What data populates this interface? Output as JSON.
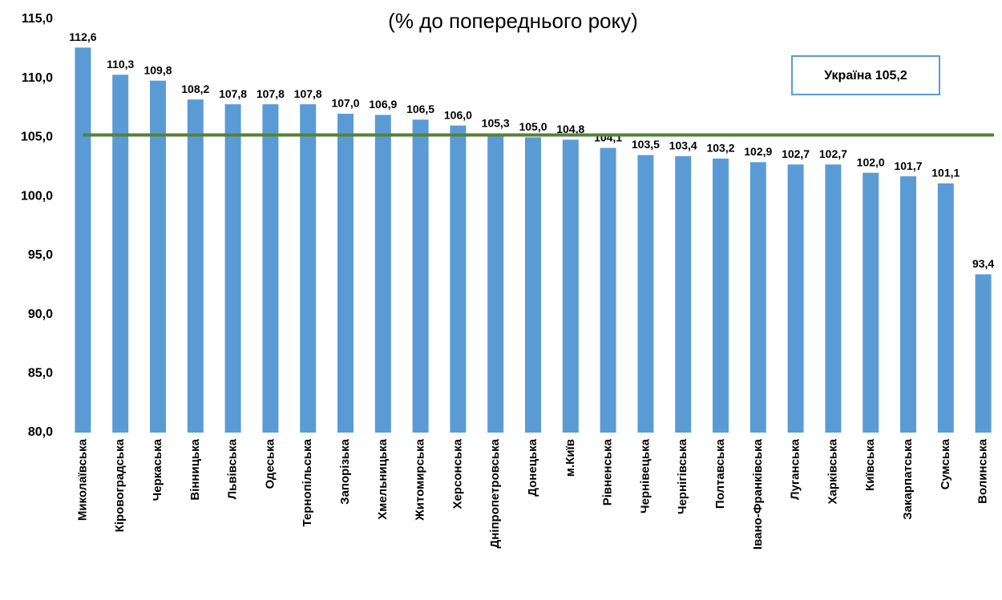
{
  "chart_data": {
    "type": "bar",
    "subtitle": "(% до попереднього року)",
    "categories": [
      "Миколаївська",
      "Кіровоградська",
      "Черкаська",
      "Вінницька",
      "Львівська",
      "Одеська",
      "Тернопільська",
      "Запорізька",
      "Хмельницька",
      "Житомирська",
      "Херсонська",
      "Дніпропетровська",
      "Донецька",
      "м.Київ",
      "Рівненська",
      "Чернівецька",
      "Чернігівська",
      "Полтавська",
      "Івано-Франківська",
      "Луганська",
      "Харківська",
      "Київська",
      "Закарпатська",
      "Сумська",
      "Волинська"
    ],
    "values": [
      112.6,
      110.3,
      109.8,
      108.2,
      107.8,
      107.8,
      107.8,
      107.0,
      106.9,
      106.5,
      106.0,
      105.3,
      105.0,
      104.8,
      104.1,
      103.5,
      103.4,
      103.2,
      102.9,
      102.7,
      102.7,
      102.0,
      101.7,
      101.1,
      93.4
    ],
    "value_labels": [
      "112,6",
      "110,3",
      "109,8",
      "108,2",
      "107,8",
      "107,8",
      "107,8",
      "107,0",
      "106,9",
      "106,5",
      "106,0",
      "105,3",
      "105,0",
      "104,8",
      "104,1",
      "103,5",
      "103,4",
      "103,2",
      "102,9",
      "102,7",
      "102,7",
      "102,0",
      "101,7",
      "101,1",
      "93,4"
    ],
    "color": "#5b9bd5",
    "ylim": [
      80,
      115
    ],
    "yticks": [
      {
        "value": 80,
        "label": "80,0"
      },
      {
        "value": 85,
        "label": "85,0"
      },
      {
        "value": 90,
        "label": "90,0"
      },
      {
        "value": 95,
        "label": "95,0"
      },
      {
        "value": 100,
        "label": "100,0"
      },
      {
        "value": 105,
        "label": "105,0"
      },
      {
        "value": 110,
        "label": "110,0"
      },
      {
        "value": 115,
        "label": "115,0"
      }
    ],
    "grid": false,
    "reference_line": {
      "value": 105.2,
      "label": "Україна 105,2",
      "color": "#548235"
    }
  }
}
